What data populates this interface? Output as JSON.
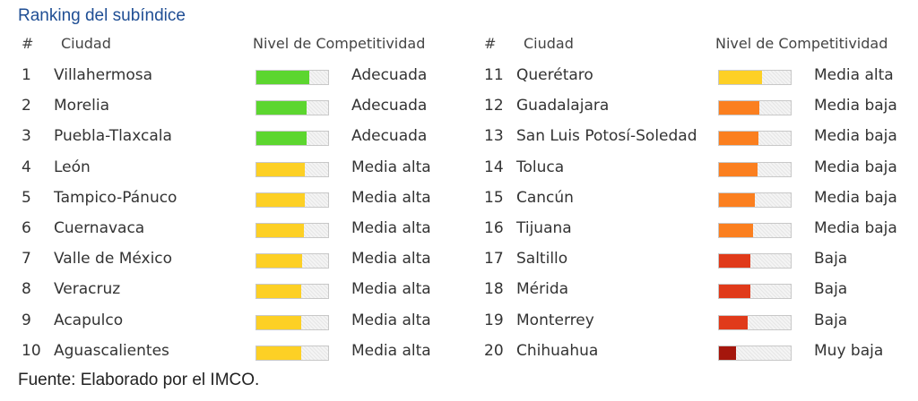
{
  "title": "Ranking del subíndice",
  "source": "Fuente: Elaborado por el IMCO.",
  "headers": {
    "num": "#",
    "city": "Ciudad",
    "level": "Nivel de Competitividad"
  },
  "colors": {
    "Adecuada": "#5cd62f",
    "Media alta": "#fdd025",
    "Media baja": "#fb7f1f",
    "Baja": "#e03a1a",
    "Muy baja": "#a5160c"
  },
  "chart_data": {
    "type": "table",
    "columns": [
      "#",
      "Ciudad",
      "Nivel de Competitividad"
    ],
    "rows": [
      {
        "rank": "1",
        "city": "Villahermosa",
        "level": "Adecuada",
        "bar": 0.74
      },
      {
        "rank": "2",
        "city": "Morelia",
        "level": "Adecuada",
        "bar": 0.7
      },
      {
        "rank": "3",
        "city": "Puebla-Tlaxcala",
        "level": "Adecuada",
        "bar": 0.7
      },
      {
        "rank": "4",
        "city": "León",
        "level": "Media alta",
        "bar": 0.68
      },
      {
        "rank": "5",
        "city": "Tampico-Pánuco",
        "level": "Media alta",
        "bar": 0.68
      },
      {
        "rank": "6",
        "city": "Cuernavaca",
        "level": "Media alta",
        "bar": 0.66
      },
      {
        "rank": "7",
        "city": "Valle de México",
        "level": "Media alta",
        "bar": 0.64
      },
      {
        "rank": "8",
        "city": "Veracruz",
        "level": "Media alta",
        "bar": 0.62
      },
      {
        "rank": "9",
        "city": "Acapulco",
        "level": "Media alta",
        "bar": 0.62
      },
      {
        "rank": "10",
        "city": "Aguascalientes",
        "level": "Media alta",
        "bar": 0.62
      },
      {
        "rank": "11",
        "city": "Querétaro",
        "level": "Media alta",
        "bar": 0.6
      },
      {
        "rank": "12",
        "city": "Guadalajara",
        "level": "Media baja",
        "bar": 0.56
      },
      {
        "rank": "13",
        "city": "San Luis Potosí-Soledad",
        "level": "Media baja",
        "bar": 0.55
      },
      {
        "rank": "14",
        "city": "Toluca",
        "level": "Media baja",
        "bar": 0.54
      },
      {
        "rank": "15",
        "city": "Cancún",
        "level": "Media baja",
        "bar": 0.5
      },
      {
        "rank": "16",
        "city": "Tijuana",
        "level": "Media baja",
        "bar": 0.48
      },
      {
        "rank": "17",
        "city": "Saltillo",
        "level": "Baja",
        "bar": 0.44
      },
      {
        "rank": "18",
        "city": "Mérida",
        "level": "Baja",
        "bar": 0.44
      },
      {
        "rank": "19",
        "city": "Monterrey",
        "level": "Baja",
        "bar": 0.4
      },
      {
        "rank": "20",
        "city": "Chihuahua",
        "level": "Muy baja",
        "bar": 0.24
      }
    ]
  }
}
